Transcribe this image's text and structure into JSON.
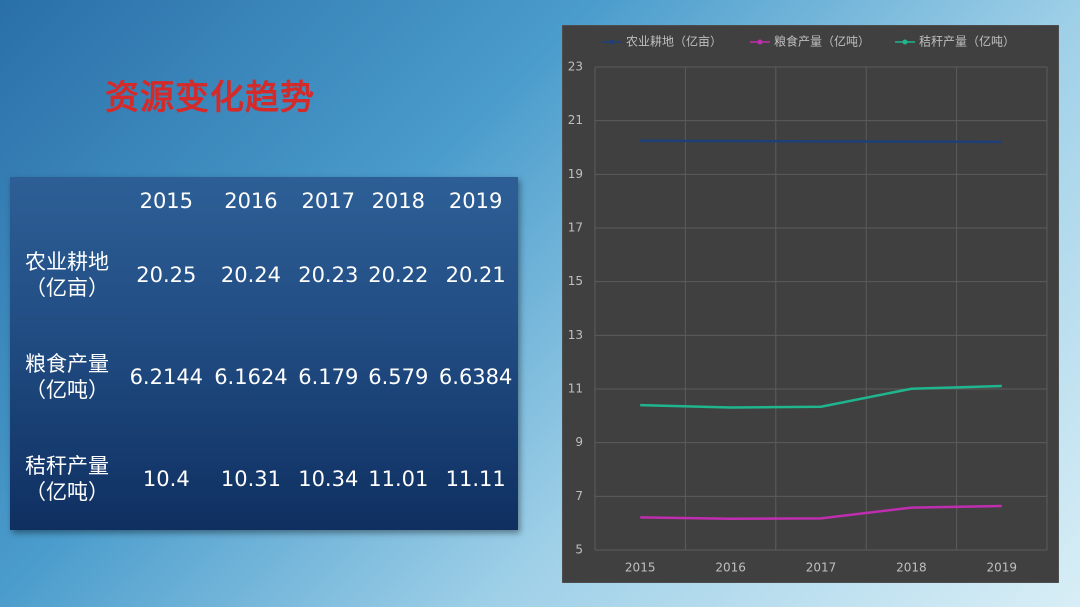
{
  "title": "资源变化趋势",
  "table": {
    "columns": [
      "2015",
      "2016",
      "2017",
      "2018",
      "2019"
    ],
    "rows": [
      {
        "name": "农业耕地",
        "unit": "（亿亩）",
        "cells": [
          "20.25",
          "20.24",
          "20.23",
          "20.22",
          "20.21"
        ]
      },
      {
        "name": "粮食产量",
        "unit": "（亿吨）",
        "cells": [
          "6.2144",
          "6.1624",
          "6.179",
          "6.579",
          "6.6384"
        ]
      },
      {
        "name": "秸秆产量",
        "unit": "（亿吨）",
        "cells": [
          "10.4",
          "10.31",
          "10.34",
          "11.01",
          "11.11"
        ]
      }
    ]
  },
  "chart_data": {
    "type": "line",
    "categories": [
      "2015",
      "2016",
      "2017",
      "2018",
      "2019"
    ],
    "series": [
      {
        "name": "农业耕地（亿亩）",
        "color": "#1f3f78",
        "values": [
          20.25,
          20.24,
          20.23,
          20.22,
          20.21
        ]
      },
      {
        "name": "粮食产量（亿吨）",
        "color": "#c02eb0",
        "values": [
          6.2144,
          6.1624,
          6.179,
          6.579,
          6.6384
        ]
      },
      {
        "name": "秸秆产量（亿吨）",
        "color": "#1fb58e",
        "values": [
          10.4,
          10.31,
          10.34,
          11.01,
          11.11
        ]
      }
    ],
    "ylim": [
      5,
      23
    ],
    "yticks": [
      5,
      7,
      9,
      11,
      13,
      15,
      17,
      19,
      21,
      23
    ],
    "grid": true,
    "legend": "top"
  }
}
